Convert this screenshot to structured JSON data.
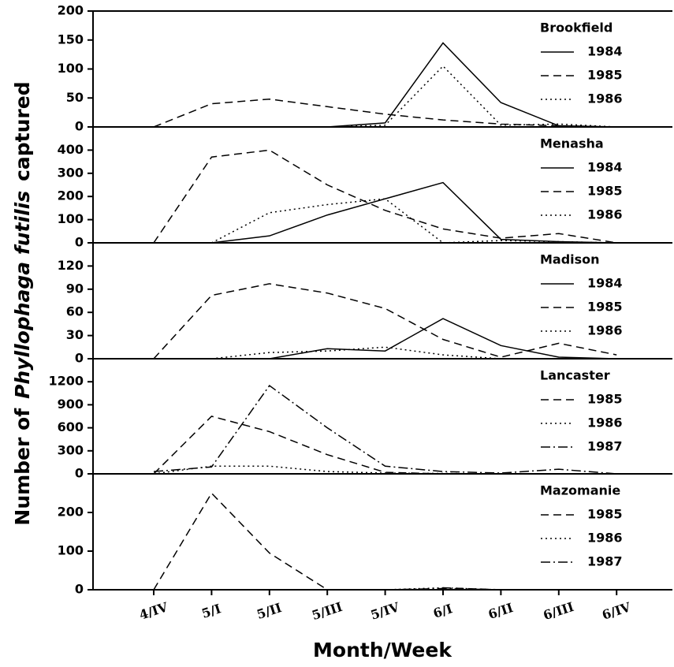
{
  "xlabel": "Month/Week",
  "ylabel": [
    "Number of",
    "Phyllophaga futilis",
    "captured"
  ],
  "chart_data": [
    {
      "type": "line",
      "title": "Brookfield",
      "categories": [
        "4/IV",
        "5/I",
        "5/II",
        "5/III",
        "5/IV",
        "6/I",
        "6/II",
        "6/III",
        "6/IV"
      ],
      "ylim": [
        0,
        200
      ],
      "yticks": [
        0,
        50,
        100,
        150,
        200
      ],
      "series": [
        {
          "name": "1984",
          "color": "#000000",
          "style": "solid",
          "values": [
            null,
            null,
            0,
            0,
            7,
            145,
            42,
            2,
            0
          ]
        },
        {
          "name": "1985",
          "color": "#000000",
          "style": "dashed",
          "values": [
            0,
            40,
            48,
            35,
            22,
            12,
            5,
            2,
            0
          ]
        },
        {
          "name": "1986",
          "color": "#000000",
          "style": "dotted",
          "values": [
            null,
            null,
            null,
            0,
            3,
            105,
            3,
            5,
            0
          ]
        }
      ]
    },
    {
      "type": "line",
      "title": "Menasha",
      "categories": [
        "4/IV",
        "5/I",
        "5/II",
        "5/III",
        "5/IV",
        "6/I",
        "6/II",
        "6/III",
        "6/IV"
      ],
      "ylim": [
        0,
        500
      ],
      "yticks": [
        0,
        100,
        200,
        300,
        400
      ],
      "series": [
        {
          "name": "1984",
          "color": "#000000",
          "style": "solid",
          "values": [
            null,
            0,
            30,
            120,
            190,
            260,
            15,
            5,
            0
          ]
        },
        {
          "name": "1985",
          "color": "#000000",
          "style": "dashed",
          "values": [
            0,
            370,
            400,
            250,
            140,
            60,
            20,
            40,
            0
          ]
        },
        {
          "name": "1986",
          "color": "#000000",
          "style": "dotted",
          "values": [
            null,
            0,
            130,
            165,
            190,
            0,
            10,
            5,
            0
          ]
        }
      ]
    },
    {
      "type": "line",
      "title": "Madison",
      "categories": [
        "4/IV",
        "5/I",
        "5/II",
        "5/III",
        "5/IV",
        "6/I",
        "6/II",
        "6/III",
        "6/IV"
      ],
      "ylim": [
        0,
        150
      ],
      "yticks": [
        0,
        30,
        60,
        90,
        120
      ],
      "series": [
        {
          "name": "1984",
          "color": "#000000",
          "style": "solid",
          "values": [
            null,
            0,
            0,
            13,
            10,
            52,
            17,
            2,
            0
          ]
        },
        {
          "name": "1985",
          "color": "#000000",
          "style": "dashed",
          "values": [
            0,
            82,
            97,
            85,
            65,
            25,
            2,
            20,
            5
          ]
        },
        {
          "name": "1986",
          "color": "#000000",
          "style": "dotted",
          "values": [
            null,
            0,
            8,
            10,
            15,
            5,
            0,
            0,
            0
          ]
        }
      ]
    },
    {
      "type": "line",
      "title": "Lancaster",
      "categories": [
        "4/IV",
        "5/I",
        "5/II",
        "5/III",
        "5/IV",
        "6/I",
        "6/II",
        "6/III",
        "6/IV"
      ],
      "ylim": [
        0,
        1500
      ],
      "yticks": [
        0,
        300,
        600,
        900,
        1200
      ],
      "series": [
        {
          "name": "1985",
          "color": "#000000",
          "style": "dashed",
          "values": [
            0,
            750,
            550,
            250,
            20,
            0,
            0,
            0,
            0
          ]
        },
        {
          "name": "1986",
          "color": "#000000",
          "style": "dotted",
          "values": [
            0,
            100,
            100,
            30,
            10,
            5,
            0,
            0,
            0
          ]
        },
        {
          "name": "1987",
          "color": "#000000",
          "style": "dashdot",
          "values": [
            30,
            90,
            1150,
            600,
            100,
            30,
            10,
            60,
            0
          ]
        }
      ]
    },
    {
      "type": "line",
      "title": "Mazomanie",
      "categories": [
        "4/IV",
        "5/I",
        "5/II",
        "5/III",
        "5/IV",
        "6/I",
        "6/II",
        "6/III",
        "6/IV"
      ],
      "ylim": [
        0,
        300
      ],
      "yticks": [
        0,
        100,
        200
      ],
      "series": [
        {
          "name": "1985",
          "color": "#000000",
          "style": "dashed",
          "values": [
            0,
            250,
            95,
            0,
            null,
            5,
            0,
            null,
            null
          ]
        },
        {
          "name": "1986",
          "color": "#000000",
          "style": "dotted",
          "values": [
            null,
            null,
            null,
            null,
            0,
            5,
            0,
            null,
            null
          ]
        },
        {
          "name": "1987",
          "color": "#000000",
          "style": "dashdot",
          "values": [
            null,
            null,
            null,
            null,
            0,
            3,
            0,
            null,
            null
          ]
        }
      ]
    }
  ]
}
